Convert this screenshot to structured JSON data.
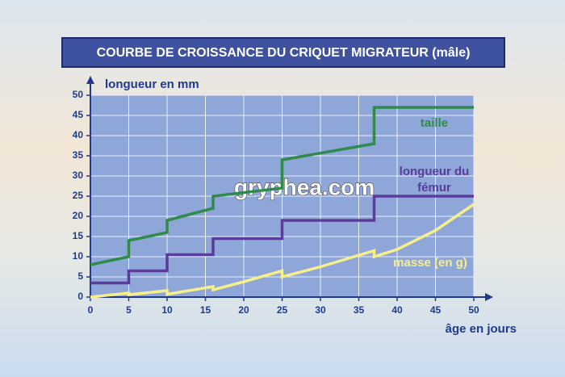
{
  "chart_data": {
    "type": "line",
    "title": "COURBE DE CROISSANCE DU CRIQUET MIGRATEUR (mâle)",
    "y_label": "longueur en mm",
    "x_label": "âge en jours",
    "watermark": "gryphea.com",
    "xlim": [
      0,
      50
    ],
    "xticks": [
      0,
      5,
      10,
      15,
      20,
      25,
      30,
      35,
      40,
      45,
      50
    ],
    "ylim": [
      0,
      50
    ],
    "yticks": [
      0,
      5,
      10,
      15,
      20,
      25,
      30,
      35,
      40,
      45,
      50
    ],
    "grid": true,
    "series": [
      {
        "name": "taille",
        "color": "#2e8b4a",
        "x": [
          0,
          5,
          5,
          10,
          10,
          16,
          16,
          25,
          25,
          37,
          37,
          50
        ],
        "values": [
          8,
          10,
          14,
          16,
          19,
          22,
          25,
          27,
          34,
          38,
          47,
          47
        ]
      },
      {
        "name": "longueur du fémur",
        "color": "#5a3d9a",
        "x": [
          0,
          5,
          5,
          10,
          10,
          16,
          16,
          25,
          25,
          37,
          37,
          50
        ],
        "values": [
          3.5,
          3.5,
          6.5,
          6.5,
          10.5,
          10.5,
          14.5,
          14.5,
          19,
          19,
          25,
          25
        ]
      },
      {
        "name": "masse (en g)",
        "color": "#f7f08a",
        "x": [
          0,
          5,
          5,
          10,
          10,
          16,
          16,
          20,
          25,
          25,
          30,
          37,
          37,
          40,
          45,
          50
        ],
        "values": [
          0,
          1,
          0.6,
          1.6,
          0.7,
          2.6,
          1.8,
          3.8,
          6.5,
          5,
          7.5,
          11.5,
          10,
          11.8,
          16.5,
          23
        ]
      }
    ]
  }
}
